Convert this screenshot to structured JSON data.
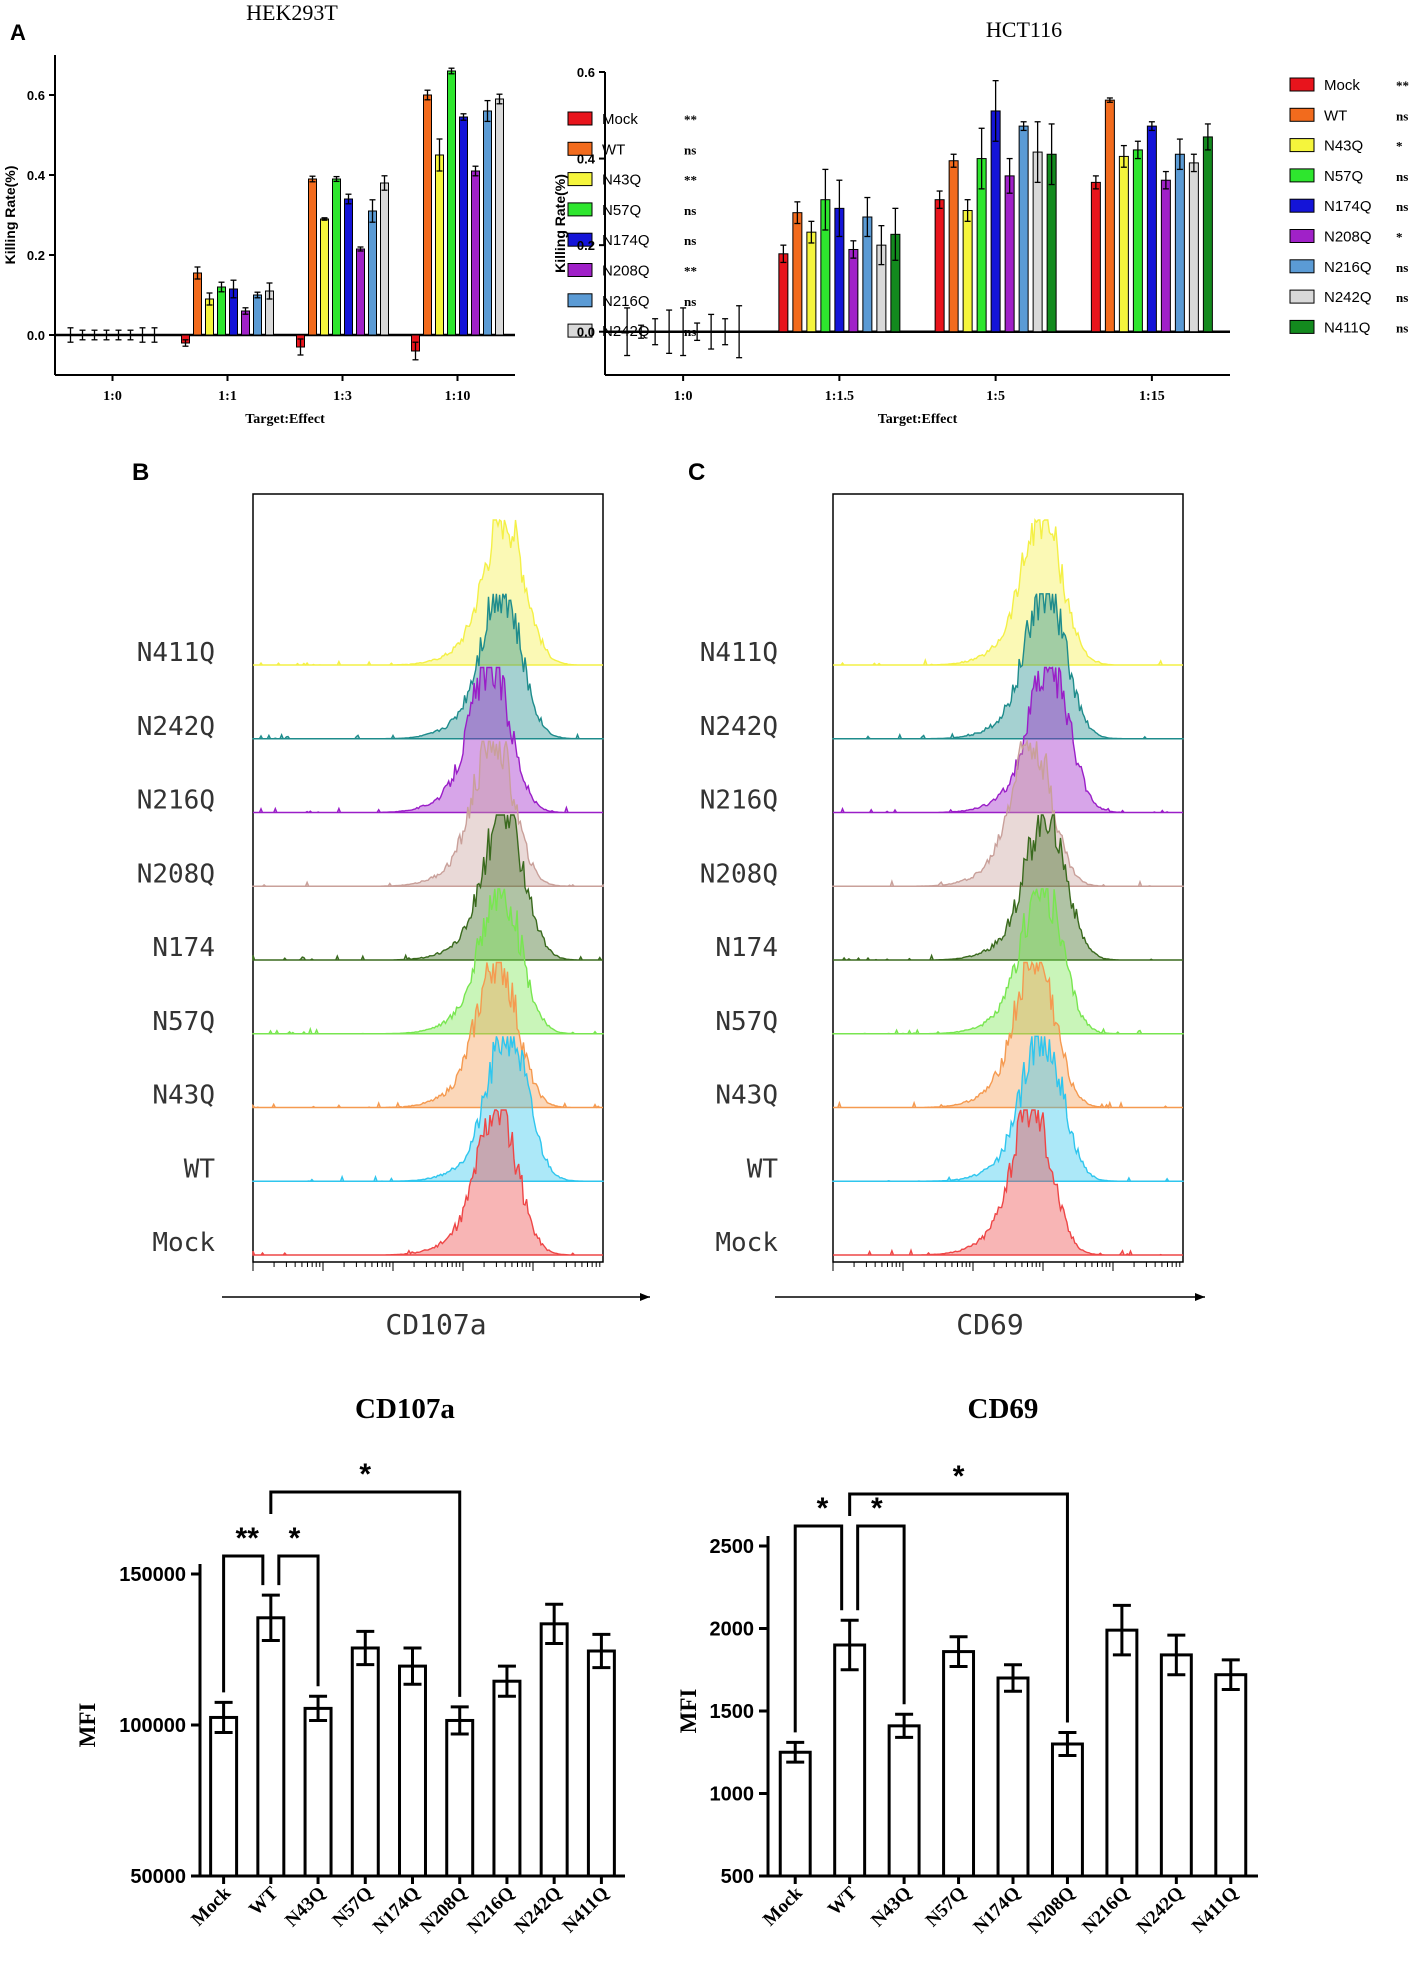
{
  "panel_labels": {
    "a": "A",
    "b": "B",
    "c": "C"
  },
  "chart_data": [
    {
      "id": "hek",
      "type": "bar",
      "title": "HEK293T",
      "xlabel": "Target:Effect",
      "ylabel": "Killing Rate(%)",
      "ylim": [
        -0.1,
        0.7
      ],
      "yticks": [
        "0.0",
        "0.2",
        "0.4",
        "0.6"
      ],
      "categories": [
        "1:0",
        "1:1",
        "1:3",
        "1:10"
      ],
      "series": [
        {
          "name": "Mock",
          "sig": "**",
          "color": "#e8141c",
          "values": [
            0.0,
            -0.02,
            -0.03,
            -0.04
          ],
          "err": [
            0.018,
            0.008,
            0.02,
            0.022
          ]
        },
        {
          "name": "WT",
          "sig": "ns",
          "color": "#f26b1d",
          "values": [
            0.0,
            0.155,
            0.39,
            0.6
          ],
          "err": [
            0.012,
            0.015,
            0.007,
            0.012
          ]
        },
        {
          "name": "N43Q",
          "sig": "**",
          "color": "#f5f53c",
          "values": [
            0.0,
            0.09,
            0.29,
            0.45
          ],
          "err": [
            0.012,
            0.015,
            0.003,
            0.04
          ]
        },
        {
          "name": "N57Q",
          "sig": "ns",
          "color": "#2ee62e",
          "values": [
            0.0,
            0.12,
            0.39,
            0.66
          ],
          "err": [
            0.012,
            0.012,
            0.006,
            0.007
          ]
        },
        {
          "name": "N174Q",
          "sig": "ns",
          "color": "#1414d8",
          "values": [
            0.0,
            0.115,
            0.34,
            0.545
          ],
          "err": [
            0.012,
            0.022,
            0.012,
            0.008
          ]
        },
        {
          "name": "N208Q",
          "sig": "**",
          "color": "#a021c8",
          "values": [
            0.0,
            0.06,
            0.215,
            0.41
          ],
          "err": [
            0.012,
            0.008,
            0.005,
            0.012
          ]
        },
        {
          "name": "N216Q",
          "sig": "ns",
          "color": "#5b9bd5",
          "values": [
            0.0,
            0.1,
            0.31,
            0.56
          ],
          "err": [
            0.018,
            0.007,
            0.028,
            0.026
          ]
        },
        {
          "name": "N242Q",
          "sig": "ns",
          "color": "#d9d9d9",
          "values": [
            0.0,
            0.11,
            0.38,
            0.59
          ],
          "err": [
            0.018,
            0.02,
            0.018,
            0.012
          ]
        }
      ]
    },
    {
      "id": "hct",
      "type": "bar",
      "title": "HCT116",
      "xlabel": "Target:Effect",
      "ylabel": "Killing Rate(%)",
      "ylim": [
        -0.1,
        0.6
      ],
      "yticks": [
        "0.0",
        "0.2",
        "0.4",
        "0.6"
      ],
      "categories": [
        "1:0",
        "1:1.5",
        "1:5",
        "1:15"
      ],
      "series": [
        {
          "name": "Mock",
          "sig": "**",
          "color": "#e8141c",
          "values": [
            0.0,
            0.18,
            0.305,
            0.345
          ],
          "err": [
            0.055,
            0.02,
            0.02,
            0.015
          ]
        },
        {
          "name": "WT",
          "sig": "ns",
          "color": "#f26b1d",
          "values": [
            0.0,
            0.275,
            0.395,
            0.535
          ],
          "err": [
            0.015,
            0.025,
            0.015,
            0.005
          ]
        },
        {
          "name": "N43Q",
          "sig": "*",
          "color": "#f5f53c",
          "values": [
            0.0,
            0.23,
            0.28,
            0.405
          ],
          "err": [
            0.03,
            0.025,
            0.025,
            0.025
          ]
        },
        {
          "name": "N57Q",
          "sig": "ns",
          "color": "#2ee62e",
          "values": [
            0.0,
            0.305,
            0.4,
            0.42
          ],
          "err": [
            0.05,
            0.07,
            0.07,
            0.02
          ]
        },
        {
          "name": "N174Q",
          "sig": "ns",
          "color": "#1414d8",
          "values": [
            0.0,
            0.285,
            0.51,
            0.475
          ],
          "err": [
            0.055,
            0.065,
            0.07,
            0.01
          ]
        },
        {
          "name": "N208Q",
          "sig": "*",
          "color": "#a021c8",
          "values": [
            0.0,
            0.19,
            0.36,
            0.35
          ],
          "err": [
            0.02,
            0.02,
            0.04,
            0.02
          ]
        },
        {
          "name": "N216Q",
          "sig": "ns",
          "color": "#5b9bd5",
          "values": [
            0.0,
            0.265,
            0.475,
            0.41
          ],
          "err": [
            0.04,
            0.045,
            0.01,
            0.035
          ]
        },
        {
          "name": "N242Q",
          "sig": "ns",
          "color": "#d9d9d9",
          "values": [
            0.0,
            0.2,
            0.415,
            0.39
          ],
          "err": [
            0.03,
            0.045,
            0.07,
            0.02
          ]
        },
        {
          "name": "N411Q",
          "sig": "ns",
          "color": "#138a1e",
          "values": [
            0.0,
            0.225,
            0.41,
            0.45
          ],
          "err": [
            0.06,
            0.06,
            0.07,
            0.03
          ]
        }
      ]
    },
    {
      "id": "cd107a",
      "type": "bar",
      "title": "CD107a",
      "ylabel": "MFI",
      "ylim": [
        50000,
        150000
      ],
      "yticks": [
        "50000",
        "100000",
        "150000"
      ],
      "categories": [
        "Mock",
        "WT",
        "N43Q",
        "N57Q",
        "N174Q",
        "N208Q",
        "N216Q",
        "N242Q",
        "N411Q"
      ],
      "values": [
        102500,
        135500,
        105500,
        125500,
        119500,
        101500,
        114500,
        133500,
        124500
      ],
      "err": [
        5000,
        7500,
        4000,
        5500,
        6000,
        4500,
        5000,
        6500,
        5500
      ],
      "brackets": [
        {
          "from": 0,
          "to": 1,
          "label": "**",
          "level": 1
        },
        {
          "from": 1,
          "to": 2,
          "label": "*",
          "level": 1
        },
        {
          "from": 1,
          "to": 5,
          "label": "*",
          "level": 2
        }
      ]
    },
    {
      "id": "cd69",
      "type": "bar",
      "title": "CD69",
      "ylabel": "MFI",
      "ylim": [
        500,
        2500
      ],
      "yticks": [
        "500",
        "1000",
        "1500",
        "2000",
        "2500"
      ],
      "categories": [
        "Mock",
        "WT",
        "N43Q",
        "N57Q",
        "N174Q",
        "N208Q",
        "N216Q",
        "N242Q",
        "N411Q"
      ],
      "values": [
        1250,
        1900,
        1410,
        1860,
        1700,
        1300,
        1990,
        1840,
        1720
      ],
      "err": [
        60,
        150,
        70,
        90,
        80,
        70,
        150,
        120,
        90
      ],
      "brackets": [
        {
          "from": 0,
          "to": 1,
          "label": "*",
          "level": 1
        },
        {
          "from": 1,
          "to": 2,
          "label": "*",
          "level": 1
        },
        {
          "from": 1,
          "to": 5,
          "label": "*",
          "level": 2
        }
      ]
    }
  ],
  "histograms": [
    {
      "id": "cd107a_hist",
      "xlabel": "CD107a",
      "tracks": [
        {
          "label": "N411Q",
          "color": "#f4f046",
          "peak": 0.72
        },
        {
          "label": "N242Q",
          "color": "#1e8c8c",
          "peak": 0.71
        },
        {
          "label": "N216Q",
          "color": "#9a1ec8",
          "peak": 0.68
        },
        {
          "label": "N208Q",
          "color": "#c9a09a",
          "peak": 0.69
        },
        {
          "label": "N174",
          "color": "#3a6a1e",
          "peak": 0.72
        },
        {
          "label": "N57Q",
          "color": "#78e650",
          "peak": 0.71
        },
        {
          "label": "N43Q",
          "color": "#f59a50",
          "peak": 0.7
        },
        {
          "label": "WT",
          "color": "#2fc6ee",
          "peak": 0.73
        },
        {
          "label": "Mock",
          "color": "#ee4646",
          "peak": 0.7
        }
      ]
    },
    {
      "id": "cd69_hist",
      "xlabel": "CD69",
      "tracks": [
        {
          "label": "N411Q",
          "color": "#f4f046",
          "peak": 0.6
        },
        {
          "label": "N242Q",
          "color": "#1e8c8c",
          "peak": 0.61
        },
        {
          "label": "N216Q",
          "color": "#9a1ec8",
          "peak": 0.62
        },
        {
          "label": "N208Q",
          "color": "#c9a09a",
          "peak": 0.57
        },
        {
          "label": "N174",
          "color": "#3a6a1e",
          "peak": 0.61
        },
        {
          "label": "N57Q",
          "color": "#78e650",
          "peak": 0.6
        },
        {
          "label": "N43Q",
          "color": "#f59a50",
          "peak": 0.58
        },
        {
          "label": "WT",
          "color": "#2fc6ee",
          "peak": 0.6
        },
        {
          "label": "Mock",
          "color": "#ee4646",
          "peak": 0.57
        }
      ]
    }
  ]
}
